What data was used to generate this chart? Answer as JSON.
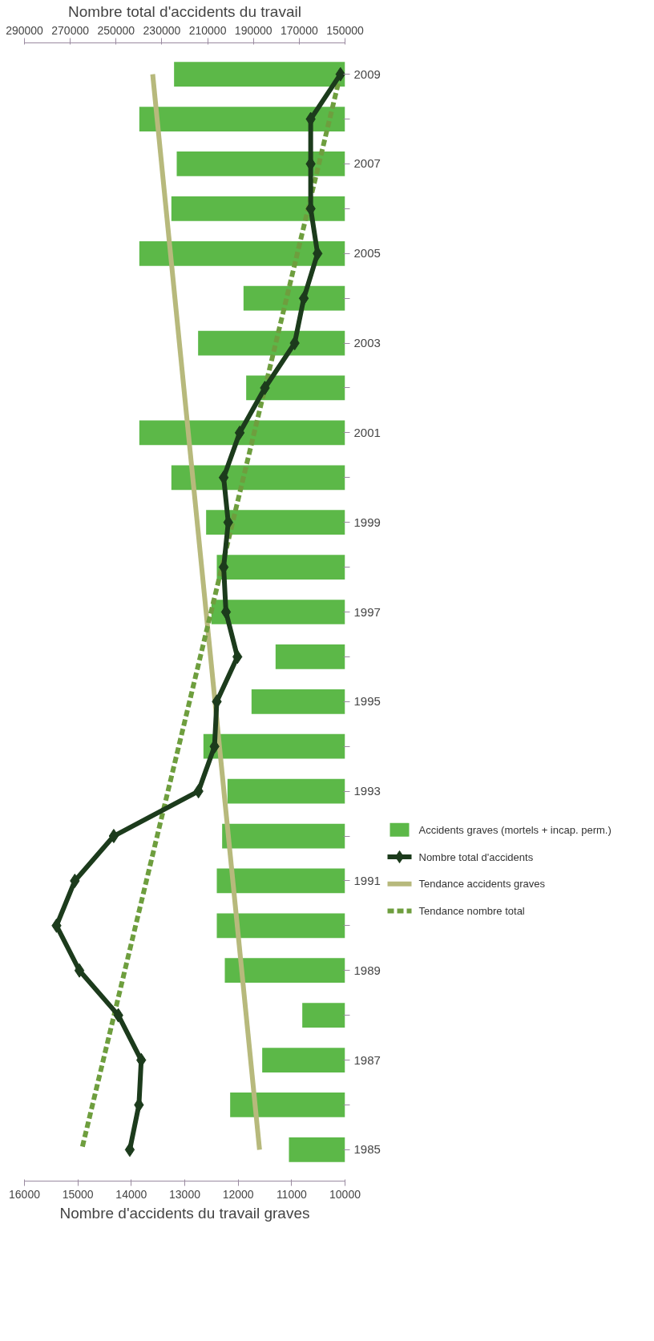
{
  "chart_data": {
    "type": "bar",
    "orientation": "horizontal",
    "xlabel": "Nombre d'accidents du travail graves",
    "x2label": "Nombre total d'accidents du travail",
    "categories": [
      "2009",
      null,
      "2007",
      null,
      "2005",
      null,
      "2003",
      null,
      "2001",
      null,
      "1999",
      null,
      "1997",
      null,
      "1995",
      null,
      "1993",
      null,
      "1991",
      null,
      "1989",
      null,
      "1987",
      null,
      "1985"
    ],
    "xlim": [
      16000,
      10000
    ],
    "xticks": [
      16000,
      15000,
      14000,
      13000,
      12000,
      11000,
      10000
    ],
    "x2lim": [
      290000,
      150000
    ],
    "x2ticks": [
      290000,
      270000,
      250000,
      230000,
      210000,
      190000,
      170000,
      150000
    ],
    "grid": false,
    "legend": "right",
    "series": [
      {
        "name": "Accidents graves (mortels + incap. perm.)",
        "color": "#5cb848",
        "values": [
          13200,
          13850,
          13150,
          13250,
          13850,
          11900,
          12750,
          11850,
          13850,
          13250,
          12600,
          12400,
          12500,
          11300,
          11750,
          12650,
          12200,
          12300,
          12400,
          12400,
          12250,
          10800,
          11550,
          12150,
          11050
        ]
      },
      {
        "name": "Nombre total d'accidents",
        "type": "line",
        "axis": "x2",
        "marker": "diamond",
        "color": "#1c3b1c",
        "values": [
          152000,
          165000,
          165000,
          165000,
          162000,
          168000,
          172000,
          185000,
          196000,
          203000,
          201000,
          203000,
          202000,
          197000,
          206000,
          207000,
          214000,
          251000,
          268000,
          276000,
          266000,
          249000,
          239000,
          240000,
          244000
        ]
      },
      {
        "name": "Tendance accidents graves",
        "type": "line",
        "color": "#b7b97c",
        "values": [
          13600,
          null,
          null,
          null,
          null,
          null,
          null,
          null,
          null,
          null,
          null,
          null,
          null,
          null,
          null,
          null,
          null,
          null,
          null,
          null,
          null,
          null,
          null,
          null,
          11600
        ]
      },
      {
        "name": "Tendance nombre total",
        "type": "line",
        "axis": "x2",
        "line_style": "dashed",
        "color": "#6e9e3e",
        "values": [
          152000,
          null,
          null,
          null,
          null,
          null,
          null,
          null,
          null,
          null,
          null,
          null,
          null,
          null,
          null,
          null,
          null,
          null,
          null,
          null,
          null,
          null,
          null,
          null,
          265000
        ]
      }
    ]
  }
}
